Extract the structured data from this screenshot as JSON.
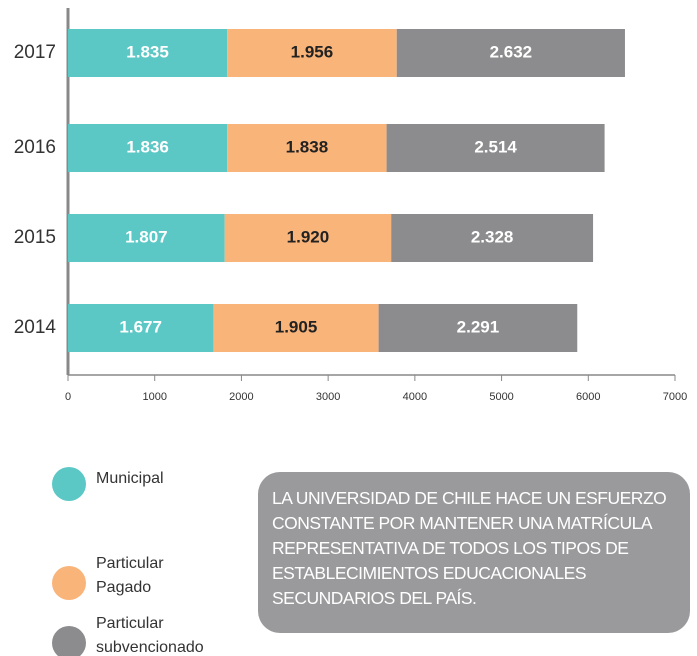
{
  "chart_data": {
    "type": "stacked_barh",
    "categories": [
      "2017",
      "2016",
      "2015",
      "2014"
    ],
    "series": [
      {
        "name": "Municipal",
        "color": "#5bc8c6",
        "values": [
          1835,
          1836,
          1807,
          1677
        ],
        "value_labels": [
          "1.835",
          "1.836",
          "1.807",
          "1.677"
        ]
      },
      {
        "name": "Particular Pagado",
        "color": "#f9b47a",
        "values": [
          1956,
          1838,
          1920,
          1905
        ],
        "value_labels": [
          "1.956",
          "1.838",
          "1.920",
          "1.905"
        ]
      },
      {
        "name": "Particular subvencionado",
        "color": "#8c8c8e",
        "values": [
          2632,
          2514,
          2328,
          2291
        ],
        "value_labels": [
          "2.632",
          "2.514",
          "2.328",
          "2.291"
        ]
      }
    ],
    "xlim": [
      0,
      7000
    ],
    "xticks": [
      0,
      1000,
      2000,
      3000,
      4000,
      5000,
      6000,
      7000
    ],
    "note": "LA UNIVERSIDAD DE CHILE HACE UN ESFUERZO CONSTANTE POR MANTENER UNA MATRÍCULA REPRESENTATIVA DE TODOS LOS TIPOS DE ESTABLECIMIENTOS EDUCACIONALES SECUNDARIOS DEL PAÍS."
  }
}
